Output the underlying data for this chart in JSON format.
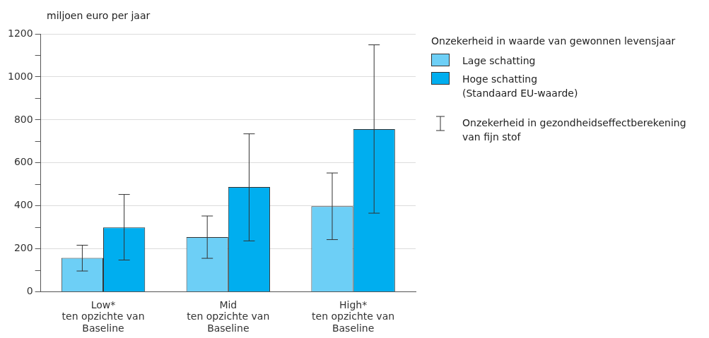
{
  "chart_data": {
    "type": "bar",
    "ylabel": "miljoen euro per jaar",
    "legend_title": "Onzekerheid in waarde van gewonnen levensjaar",
    "categories": [
      "Low*\nten opzichte van\nBaseline",
      "Mid\nten opzichte van\nBaseline",
      "High*\nten opzichte van\nBaseline"
    ],
    "series": [
      {
        "name": "Lage schatting",
        "color": "#6dcff6",
        "values": [
          158,
          255,
          398
        ],
        "errors": [
          [
            97,
            217
          ],
          [
            156,
            353
          ],
          [
            243,
            553
          ]
        ]
      },
      {
        "name": "Hoge schatting\n(Standaard EU-waarde)",
        "color": "#00aeef",
        "values": [
          300,
          488,
          757
        ],
        "errors": [
          [
            148,
            453
          ],
          [
            237,
            735
          ],
          [
            366,
            1149
          ]
        ]
      }
    ],
    "ylim": [
      0,
      1200
    ],
    "yticks": [
      0,
      {
        "value": 100,
        "label": null
      },
      200,
      {
        "value": 300,
        "label": null
      },
      400,
      {
        "value": 500,
        "label": null
      },
      600,
      {
        "value": 700,
        "label": null
      },
      800,
      {
        "value": 900,
        "label": null
      },
      1000,
      {
        "value": 1100,
        "label": null
      },
      1200
    ],
    "grid": "y",
    "legend": "right",
    "annotations": [
      "Onzekerheid in gezondheidseffectberekening\nvan fijn stof"
    ]
  }
}
